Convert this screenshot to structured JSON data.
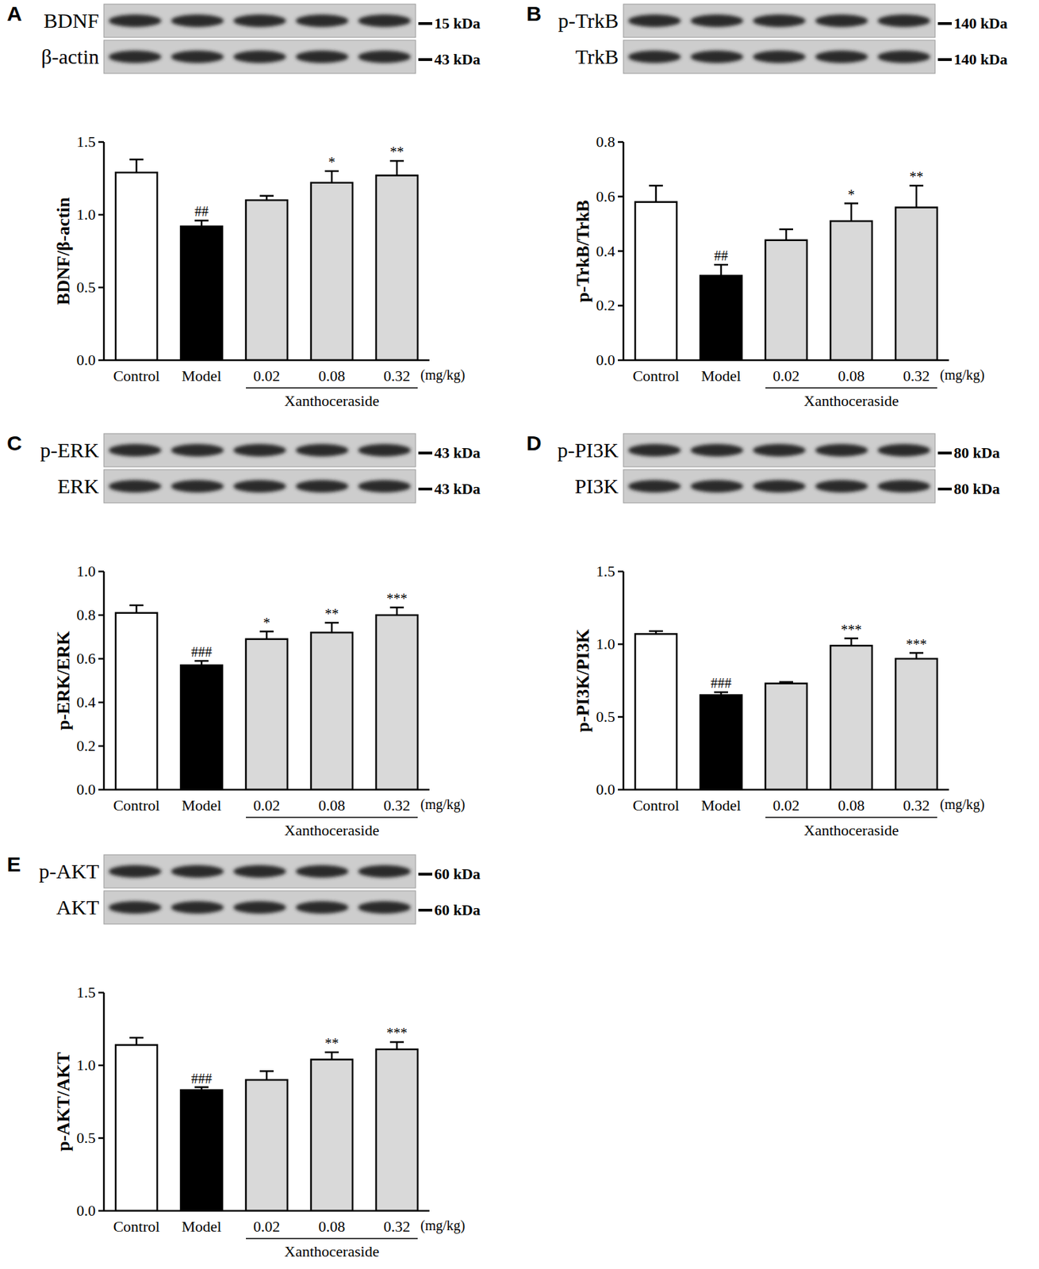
{
  "chart_data": [
    {
      "type": "bar",
      "panel": "A",
      "blots": [
        {
          "label": "BDNF",
          "kda": "15 kDa"
        },
        {
          "label": "β-actin",
          "kda": "43 kDa"
        }
      ],
      "y_label": "BDNF/β-actin",
      "categories": [
        "Control",
        "Model",
        "0.02",
        "0.08",
        "0.32"
      ],
      "unit_label": "(mg/kg)",
      "group_label": "Xanthoceraside",
      "values": [
        1.29,
        0.92,
        1.1,
        1.22,
        1.27
      ],
      "errors": [
        0.09,
        0.04,
        0.03,
        0.08,
        0.1
      ],
      "significance": [
        null,
        "##",
        null,
        "*",
        "**"
      ],
      "colors": [
        "#ffffff",
        "#000000",
        "#d9d9d9",
        "#d9d9d9",
        "#d9d9d9"
      ],
      "ylim": [
        0,
        1.5
      ],
      "yticks": [
        {
          "value": 0,
          "label": "0.0"
        },
        {
          "value": 0.5,
          "label": "0.5"
        },
        {
          "value": 1,
          "label": "1.0"
        },
        {
          "value": 1.5,
          "label": "1.5"
        }
      ]
    },
    {
      "type": "bar",
      "panel": "B",
      "blots": [
        {
          "label": "p-TrkB",
          "kda": "140 kDa"
        },
        {
          "label": "TrkB",
          "kda": "140 kDa"
        }
      ],
      "y_label": "p-TrkB/TrkB",
      "categories": [
        "Control",
        "Model",
        "0.02",
        "0.08",
        "0.32"
      ],
      "unit_label": "(mg/kg)",
      "group_label": "Xanthoceraside",
      "values": [
        0.58,
        0.31,
        0.44,
        0.51,
        0.56
      ],
      "errors": [
        0.06,
        0.04,
        0.04,
        0.065,
        0.08
      ],
      "significance": [
        null,
        "##",
        null,
        "*",
        "**"
      ],
      "colors": [
        "#ffffff",
        "#000000",
        "#d9d9d9",
        "#d9d9d9",
        "#d9d9d9"
      ],
      "ylim": [
        0,
        0.8
      ],
      "yticks": [
        {
          "value": 0,
          "label": "0.0"
        },
        {
          "value": 0.2,
          "label": "0.2"
        },
        {
          "value": 0.4,
          "label": "0.4"
        },
        {
          "value": 0.6,
          "label": "0.6"
        },
        {
          "value": 0.8,
          "label": "0.8"
        }
      ]
    },
    {
      "type": "bar",
      "panel": "C",
      "blots": [
        {
          "label": "p-ERK",
          "kda": "43 kDa"
        },
        {
          "label": "ERK",
          "kda": "43 kDa"
        }
      ],
      "y_label": "p-ERK/ERK",
      "categories": [
        "Control",
        "Model",
        "0.02",
        "0.08",
        "0.32"
      ],
      "unit_label": "(mg/kg)",
      "group_label": "Xanthoceraside",
      "values": [
        0.81,
        0.57,
        0.69,
        0.72,
        0.8
      ],
      "errors": [
        0.035,
        0.02,
        0.035,
        0.045,
        0.035
      ],
      "significance": [
        null,
        "###",
        "*",
        "**",
        "***"
      ],
      "colors": [
        "#ffffff",
        "#000000",
        "#d9d9d9",
        "#d9d9d9",
        "#d9d9d9"
      ],
      "ylim": [
        0,
        1
      ],
      "yticks": [
        {
          "value": 0,
          "label": "0.0"
        },
        {
          "value": 0.2,
          "label": "0.2"
        },
        {
          "value": 0.4,
          "label": "0.4"
        },
        {
          "value": 0.6,
          "label": "0.6"
        },
        {
          "value": 0.8,
          "label": "0.8"
        },
        {
          "value": 1,
          "label": "1.0"
        }
      ]
    },
    {
      "type": "bar",
      "panel": "D",
      "blots": [
        {
          "label": "p-PI3K",
          "kda": "80 kDa"
        },
        {
          "label": "PI3K",
          "kda": "80 kDa"
        }
      ],
      "y_label": "p-PI3K/PI3K",
      "categories": [
        "Control",
        "Model",
        "0.02",
        "0.08",
        "0.32"
      ],
      "unit_label": "(mg/kg)",
      "group_label": "Xanthoceraside",
      "values": [
        1.07,
        0.65,
        0.73,
        0.99,
        0.9
      ],
      "errors": [
        0.02,
        0.02,
        0.01,
        0.05,
        0.04
      ],
      "significance": [
        null,
        "###",
        null,
        "***",
        "***"
      ],
      "colors": [
        "#ffffff",
        "#000000",
        "#d9d9d9",
        "#d9d9d9",
        "#d9d9d9"
      ],
      "ylim": [
        0,
        1.5
      ],
      "yticks": [
        {
          "value": 0,
          "label": "0.0"
        },
        {
          "value": 0.5,
          "label": "0.5"
        },
        {
          "value": 1,
          "label": "1.0"
        },
        {
          "value": 1.5,
          "label": "1.5"
        }
      ]
    },
    {
      "type": "bar",
      "panel": "E",
      "blots": [
        {
          "label": "p-AKT",
          "kda": "60 kDa"
        },
        {
          "label": "AKT",
          "kda": "60 kDa"
        }
      ],
      "y_label": "p-AKT/AKT",
      "categories": [
        "Control",
        "Model",
        "0.02",
        "0.08",
        "0.32"
      ],
      "unit_label": "(mg/kg)",
      "group_label": "Xanthoceraside",
      "values": [
        1.14,
        0.83,
        0.9,
        1.04,
        1.11
      ],
      "errors": [
        0.05,
        0.02,
        0.06,
        0.05,
        0.05
      ],
      "significance": [
        null,
        "###",
        null,
        "**",
        "***"
      ],
      "colors": [
        "#ffffff",
        "#000000",
        "#d9d9d9",
        "#d9d9d9",
        "#d9d9d9"
      ],
      "ylim": [
        0,
        1.5
      ],
      "yticks": [
        {
          "value": 0,
          "label": "0.0"
        },
        {
          "value": 0.5,
          "label": "0.5"
        },
        {
          "value": 1,
          "label": "1.0"
        },
        {
          "value": 1.5,
          "label": "1.5"
        }
      ]
    }
  ]
}
